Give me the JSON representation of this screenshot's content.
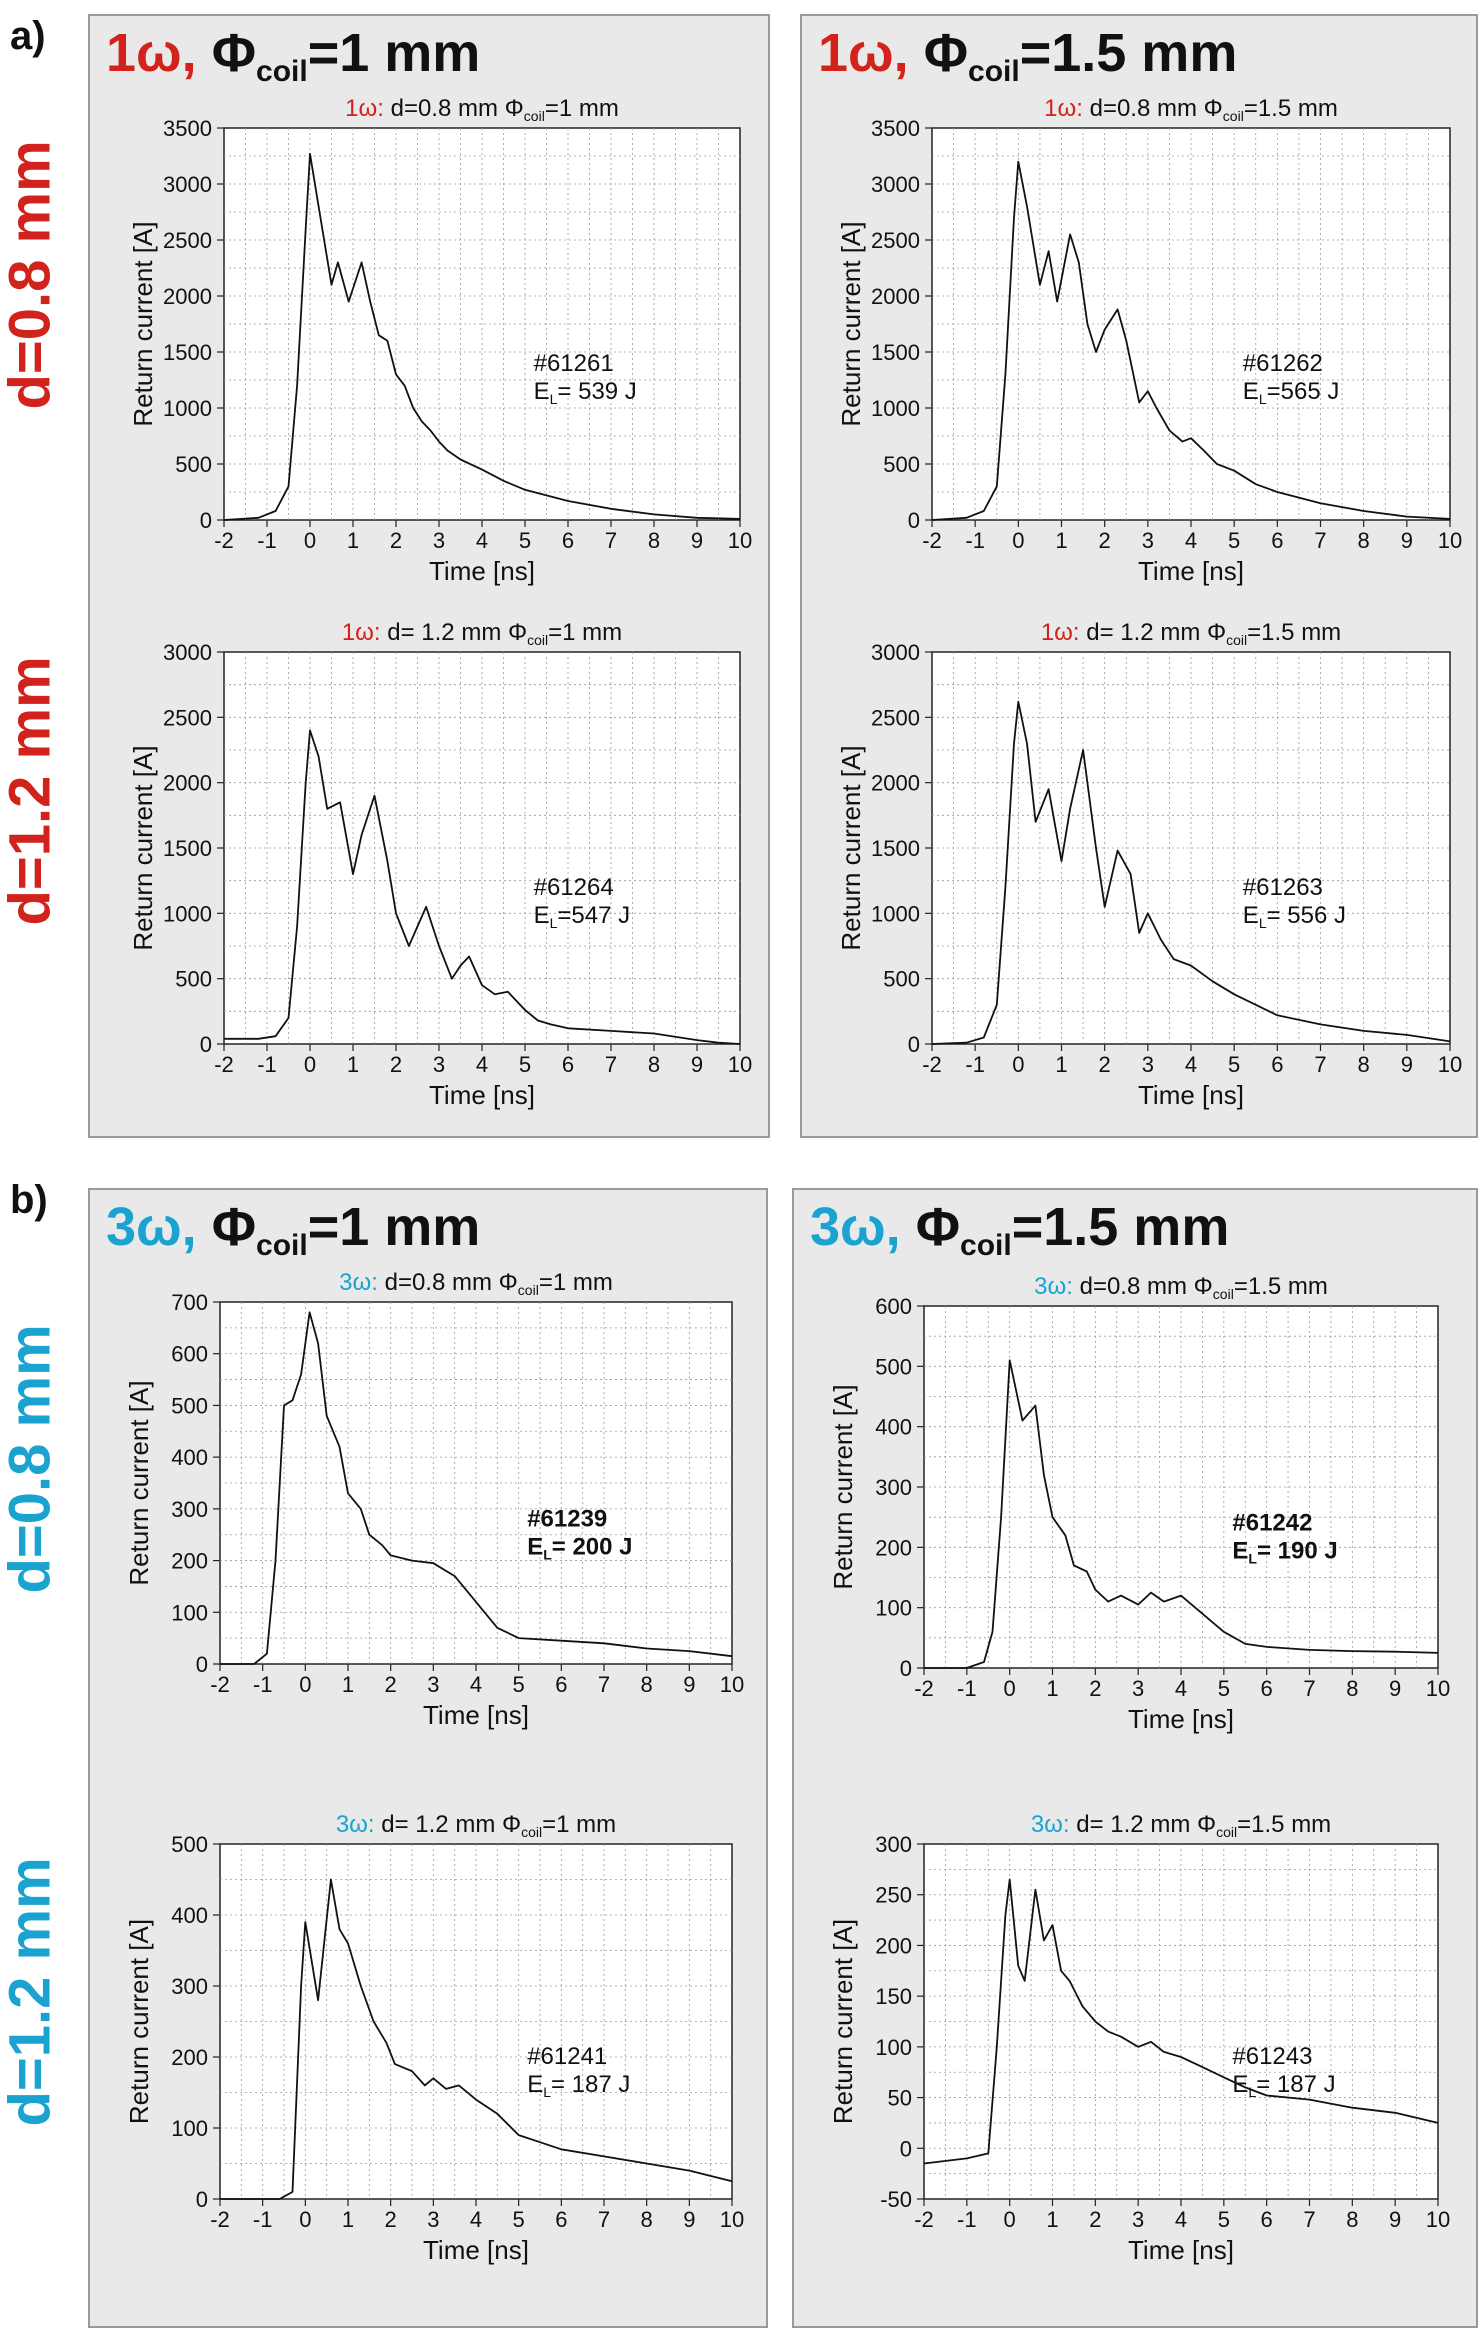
{
  "section_a": "a)",
  "section_b": "b)",
  "rows": [
    "d=0.8 mm",
    "d=1.2 mm",
    "d=0.8 mm",
    "d=1.2 mm"
  ],
  "panels": [
    {
      "omega": "1ω",
      "comma": ",",
      "phi": "Φ",
      "sub": "coil",
      "rest": "=1 mm"
    },
    {
      "omega": "1ω",
      "comma": ",",
      "phi": "Φ",
      "sub": "coil",
      "rest": "=1.5 mm"
    },
    {
      "omega": "3ω",
      "comma": ",",
      "phi": "Φ",
      "sub": "coil",
      "rest": "=1 mm"
    },
    {
      "omega": "3ω",
      "comma": ",",
      "phi": "Φ",
      "sub": "coil",
      "rest": "=1.5 mm"
    }
  ],
  "colors": {
    "red": "#d1221c",
    "blue": "#1aa3d0",
    "panel_bg": "#e9e9e9",
    "plot_bg": "#ffffff",
    "grid": "#9a9a9a"
  },
  "chart_data": [
    {
      "type": "line",
      "group": "1ω",
      "title_omega": "1ω:",
      "title_rest": " d=0.8 mm Φ",
      "title_sub": "coil",
      "title_end": "=1 mm",
      "xlabel": "Time [ns]",
      "ylabel": "Return current [A]",
      "xlim": [
        -2,
        10
      ],
      "ylim": [
        0,
        3500
      ],
      "xticks": [
        -2,
        -1,
        0,
        1,
        2,
        3,
        4,
        5,
        6,
        7,
        8,
        9,
        10
      ],
      "yticks": [
        0,
        500,
        1000,
        1500,
        2000,
        2500,
        3000,
        3500
      ],
      "annotation": [
        "#61261",
        "E",
        "L",
        "= 539 J"
      ],
      "bold": false,
      "x": [
        -2,
        -1.2,
        -0.8,
        -0.5,
        -0.3,
        -0.1,
        0,
        0.2,
        0.5,
        0.65,
        0.9,
        1.2,
        1.4,
        1.6,
        1.8,
        2.0,
        2.2,
        2.4,
        2.6,
        2.8,
        3.0,
        3.2,
        3.5,
        4,
        4.5,
        5,
        6,
        7,
        8,
        9,
        10
      ],
      "y": [
        0,
        20,
        80,
        300,
        1200,
        2600,
        3270,
        2800,
        2100,
        2300,
        1950,
        2300,
        1950,
        1650,
        1600,
        1300,
        1200,
        1000,
        880,
        800,
        700,
        620,
        540,
        450,
        350,
        270,
        170,
        100,
        50,
        20,
        10
      ]
    },
    {
      "type": "line",
      "group": "1ω",
      "title_omega": "1ω:",
      "title_rest": " d=0.8 mm Φ",
      "title_sub": "coil",
      "title_end": "=1.5 mm",
      "xlabel": "Time [ns]",
      "ylabel": "Return current [A]",
      "xlim": [
        -2,
        10
      ],
      "ylim": [
        0,
        3500
      ],
      "xticks": [
        -2,
        -1,
        0,
        1,
        2,
        3,
        4,
        5,
        6,
        7,
        8,
        9,
        10
      ],
      "yticks": [
        0,
        500,
        1000,
        1500,
        2000,
        2500,
        3000,
        3500
      ],
      "annotation": [
        "#61262",
        "E",
        "L",
        "=565 J"
      ],
      "bold": false,
      "x": [
        -2,
        -1.2,
        -0.8,
        -0.5,
        -0.3,
        -0.1,
        0,
        0.2,
        0.5,
        0.7,
        0.9,
        1.2,
        1.4,
        1.6,
        1.8,
        2.0,
        2.3,
        2.5,
        2.8,
        3.0,
        3.2,
        3.5,
        3.8,
        4,
        4.3,
        4.6,
        5,
        5.5,
        6,
        7,
        8,
        9,
        10
      ],
      "y": [
        0,
        20,
        80,
        300,
        1300,
        2700,
        3200,
        2800,
        2100,
        2400,
        1950,
        2550,
        2300,
        1750,
        1500,
        1700,
        1880,
        1600,
        1050,
        1150,
        1000,
        800,
        700,
        730,
        620,
        500,
        440,
        320,
        250,
        150,
        80,
        30,
        10
      ]
    },
    {
      "type": "line",
      "group": "1ω",
      "title_omega": "1ω:",
      "title_rest": " d= 1.2 mm Φ",
      "title_sub": "coil",
      "title_end": "=1 mm",
      "xlabel": "Time [ns]",
      "ylabel": "Return current [A]",
      "xlim": [
        -2,
        10
      ],
      "ylim": [
        0,
        3000
      ],
      "xticks": [
        -2,
        -1,
        0,
        1,
        2,
        3,
        4,
        5,
        6,
        7,
        8,
        9,
        10
      ],
      "yticks": [
        0,
        500,
        1000,
        1500,
        2000,
        2500,
        3000
      ],
      "annotation": [
        "#61264",
        "E",
        "L",
        "=547 J"
      ],
      "bold": false,
      "x": [
        -2,
        -1.2,
        -0.8,
        -0.5,
        -0.3,
        -0.1,
        0,
        0.2,
        0.4,
        0.7,
        1.0,
        1.2,
        1.5,
        1.8,
        2.0,
        2.3,
        2.5,
        2.7,
        3.0,
        3.3,
        3.5,
        3.7,
        4.0,
        4.3,
        4.6,
        5.0,
        5.3,
        5.6,
        6,
        7,
        8,
        9,
        9.5,
        10
      ],
      "y": [
        40,
        40,
        60,
        200,
        900,
        2000,
        2400,
        2200,
        1800,
        1850,
        1300,
        1600,
        1900,
        1400,
        1000,
        750,
        900,
        1050,
        750,
        500,
        600,
        670,
        450,
        380,
        400,
        260,
        180,
        150,
        120,
        100,
        80,
        30,
        10,
        0
      ]
    },
    {
      "type": "line",
      "group": "1ω",
      "title_omega": "1ω:",
      "title_rest": " d= 1.2 mm Φ",
      "title_sub": "coil",
      "title_end": "=1.5 mm",
      "xlabel": "Time [ns]",
      "ylabel": "Return current [A]",
      "xlim": [
        -2,
        10
      ],
      "ylim": [
        0,
        3000
      ],
      "xticks": [
        -2,
        -1,
        0,
        1,
        2,
        3,
        4,
        5,
        6,
        7,
        8,
        9,
        10
      ],
      "yticks": [
        0,
        500,
        1000,
        1500,
        2000,
        2500,
        3000
      ],
      "annotation": [
        "#61263",
        "E",
        "L",
        "= 556 J"
      ],
      "bold": false,
      "x": [
        -2,
        -1.2,
        -0.8,
        -0.5,
        -0.3,
        -0.1,
        0,
        0.2,
        0.4,
        0.7,
        1.0,
        1.2,
        1.5,
        1.8,
        2.0,
        2.3,
        2.6,
        2.8,
        3.0,
        3.3,
        3.6,
        4.0,
        4.5,
        5,
        5.5,
        6,
        7,
        8,
        9,
        10
      ],
      "y": [
        0,
        10,
        50,
        300,
        1200,
        2300,
        2620,
        2300,
        1700,
        1950,
        1400,
        1800,
        2250,
        1500,
        1050,
        1480,
        1300,
        850,
        1000,
        800,
        650,
        600,
        480,
        380,
        300,
        220,
        150,
        100,
        70,
        20
      ]
    },
    {
      "type": "line",
      "group": "3ω",
      "title_omega": "3ω:",
      "title_rest": " d=0.8 mm Φ",
      "title_sub": "coil",
      "title_end": "=1 mm",
      "xlabel": "Time [ns]",
      "ylabel": "Return current [A]",
      "xlim": [
        -2,
        10
      ],
      "ylim": [
        0,
        700
      ],
      "xticks": [
        -2,
        -1,
        0,
        1,
        2,
        3,
        4,
        5,
        6,
        7,
        8,
        9,
        10
      ],
      "yticks": [
        0,
        100,
        200,
        300,
        400,
        500,
        600,
        700
      ],
      "annotation": [
        "#61239",
        "E",
        "L",
        "= 200 J"
      ],
      "bold": true,
      "x": [
        -2,
        -1.2,
        -0.9,
        -0.7,
        -0.5,
        -0.3,
        -0.1,
        0.1,
        0.3,
        0.5,
        0.8,
        1,
        1.3,
        1.5,
        1.8,
        2,
        2.5,
        3,
        3.5,
        4,
        4.5,
        5,
        6,
        7,
        8,
        9,
        10
      ],
      "y": [
        0,
        0,
        20,
        200,
        500,
        510,
        560,
        680,
        620,
        480,
        420,
        330,
        300,
        250,
        230,
        210,
        200,
        195,
        170,
        120,
        70,
        50,
        45,
        40,
        30,
        25,
        15
      ]
    },
    {
      "type": "line",
      "group": "3ω",
      "title_omega": "3ω:",
      "title_rest": " d=0.8 mm Φ",
      "title_sub": "coil",
      "title_end": "=1.5 mm",
      "xlabel": "Time [ns]",
      "ylabel": "Return current [A]",
      "xlim": [
        -2,
        10
      ],
      "ylim": [
        0,
        600
      ],
      "xticks": [
        -2,
        -1,
        0,
        1,
        2,
        3,
        4,
        5,
        6,
        7,
        8,
        9,
        10
      ],
      "yticks": [
        0,
        100,
        200,
        300,
        400,
        500,
        600
      ],
      "annotation": [
        "#61242",
        "E",
        "L",
        "= 190 J"
      ],
      "bold": true,
      "x": [
        -2,
        -1,
        -0.6,
        -0.4,
        -0.2,
        0,
        0.3,
        0.6,
        0.8,
        1,
        1.3,
        1.5,
        1.8,
        2,
        2.3,
        2.6,
        3,
        3.3,
        3.6,
        4,
        4.5,
        5,
        5.5,
        6,
        7,
        8,
        9,
        10
      ],
      "y": [
        0,
        0,
        10,
        60,
        250,
        510,
        410,
        435,
        320,
        250,
        220,
        170,
        160,
        130,
        110,
        120,
        105,
        125,
        110,
        120,
        90,
        60,
        40,
        35,
        30,
        28,
        27,
        25
      ]
    },
    {
      "type": "line",
      "group": "3ω",
      "title_omega": "3ω:",
      "title_rest": " d= 1.2 mm Φ",
      "title_sub": "coil",
      "title_end": "=1 mm",
      "xlabel": "Time [ns]",
      "ylabel": "Return current [A]",
      "xlim": [
        -2,
        10
      ],
      "ylim": [
        0,
        500
      ],
      "xticks": [
        -2,
        -1,
        0,
        1,
        2,
        3,
        4,
        5,
        6,
        7,
        8,
        9,
        10
      ],
      "yticks": [
        0,
        100,
        200,
        300,
        400,
        500
      ],
      "annotation": [
        "#61241",
        "E",
        "L",
        "= 187 J"
      ],
      "bold": false,
      "x": [
        -2,
        -1,
        -0.6,
        -0.3,
        -0.1,
        0,
        0.3,
        0.6,
        0.8,
        1,
        1.3,
        1.6,
        1.9,
        2.1,
        2.5,
        2.8,
        3,
        3.3,
        3.6,
        4,
        4.5,
        5,
        5.5,
        6,
        7,
        8,
        9,
        10
      ],
      "y": [
        0,
        0,
        0,
        10,
        300,
        390,
        280,
        450,
        380,
        360,
        300,
        250,
        220,
        190,
        180,
        160,
        170,
        155,
        160,
        140,
        120,
        90,
        80,
        70,
        60,
        50,
        40,
        25
      ]
    },
    {
      "type": "line",
      "group": "3ω",
      "title_omega": "3ω:",
      "title_rest": " d= 1.2 mm Φ",
      "title_sub": "coil",
      "title_end": "=1.5 mm",
      "xlabel": "Time [ns]",
      "ylabel": "Return current [A]",
      "xlim": [
        -2,
        10
      ],
      "ylim": [
        -50,
        300
      ],
      "xticks": [
        -2,
        -1,
        0,
        1,
        2,
        3,
        4,
        5,
        6,
        7,
        8,
        9,
        10
      ],
      "yticks": [
        -50,
        0,
        50,
        100,
        150,
        200,
        250,
        300
      ],
      "annotation": [
        "#61243",
        "E",
        "L",
        "= 187 J"
      ],
      "bold": false,
      "x": [
        -2,
        -1,
        -0.8,
        -0.5,
        -0.3,
        -0.1,
        0,
        0.2,
        0.35,
        0.6,
        0.8,
        1,
        1.2,
        1.4,
        1.7,
        2,
        2.3,
        2.6,
        3,
        3.3,
        3.6,
        4,
        4.5,
        5,
        5.5,
        6,
        7,
        8,
        9,
        10
      ],
      "y": [
        -15,
        -10,
        -8,
        -5,
        100,
        230,
        265,
        180,
        165,
        255,
        205,
        220,
        175,
        165,
        140,
        125,
        115,
        110,
        100,
        105,
        95,
        90,
        80,
        70,
        60,
        52,
        48,
        40,
        35,
        25
      ]
    }
  ]
}
